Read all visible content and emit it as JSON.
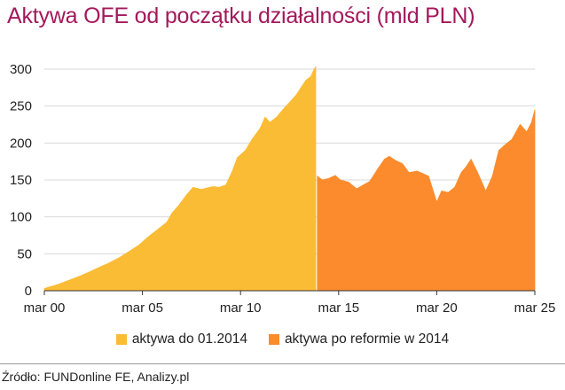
{
  "chart_data": {
    "type": "area",
    "title": "Aktywa OFE od początku działalności (mld PLN)",
    "xlabel": "",
    "ylabel": "",
    "x_ticks": [
      "mar 00",
      "mar 05",
      "mar 10",
      "mar 15",
      "mar 20",
      "mar 25"
    ],
    "y_ticks": [
      "0",
      "50",
      "100",
      "150",
      "200",
      "250",
      "300"
    ],
    "xlim": [
      "2000-03",
      "2025-03"
    ],
    "ylim": [
      0,
      300
    ],
    "grid": true,
    "legend_position": "bottom",
    "series": [
      {
        "name": "aktywa do 01.2014",
        "color": "#fbbc35",
        "x": [
          "2000-03",
          "2000-06",
          "2000-09",
          "2001-01",
          "2001-06",
          "2002-01",
          "2002-06",
          "2003-01",
          "2003-06",
          "2004-01",
          "2004-06",
          "2005-01",
          "2005-06",
          "2006-01",
          "2006-06",
          "2006-09",
          "2007-01",
          "2007-06",
          "2007-10",
          "2008-03",
          "2008-06",
          "2008-10",
          "2009-02",
          "2009-06",
          "2009-10",
          "2010-01",
          "2010-06",
          "2010-10",
          "2011-03",
          "2011-06",
          "2011-09",
          "2012-01",
          "2012-06",
          "2012-09",
          "2013-01",
          "2013-04",
          "2013-07",
          "2013-10",
          "2013-12",
          "2014-01"
        ],
        "values": [
          3,
          5,
          7,
          10,
          14,
          20,
          25,
          32,
          37,
          45,
          52,
          62,
          72,
          84,
          93,
          105,
          115,
          130,
          140,
          137,
          139,
          141,
          140,
          143,
          162,
          180,
          190,
          205,
          220,
          235,
          228,
          235,
          248,
          255,
          265,
          275,
          285,
          290,
          300,
          303
        ]
      },
      {
        "name": "aktywa po reformie w 2014",
        "color": "#fb8b2d",
        "x": [
          "2014-02",
          "2014-05",
          "2014-09",
          "2015-01",
          "2015-04",
          "2015-09",
          "2016-02",
          "2016-06",
          "2016-10",
          "2017-03",
          "2017-07",
          "2017-10",
          "2018-02",
          "2018-06",
          "2018-10",
          "2019-03",
          "2019-07",
          "2019-10",
          "2020-03",
          "2020-06",
          "2020-10",
          "2021-02",
          "2021-06",
          "2021-09",
          "2021-12",
          "2022-04",
          "2022-09",
          "2023-01",
          "2023-05",
          "2023-09",
          "2024-01",
          "2024-06",
          "2024-10",
          "2025-01",
          "2025-03"
        ],
        "values": [
          155,
          150,
          152,
          156,
          150,
          147,
          138,
          143,
          148,
          165,
          178,
          182,
          176,
          172,
          160,
          162,
          158,
          155,
          120,
          135,
          133,
          140,
          160,
          168,
          178,
          160,
          135,
          155,
          190,
          198,
          205,
          225,
          215,
          228,
          245
        ]
      }
    ]
  },
  "source": "Źródło: FUNDonline FE, Analizy.pl"
}
